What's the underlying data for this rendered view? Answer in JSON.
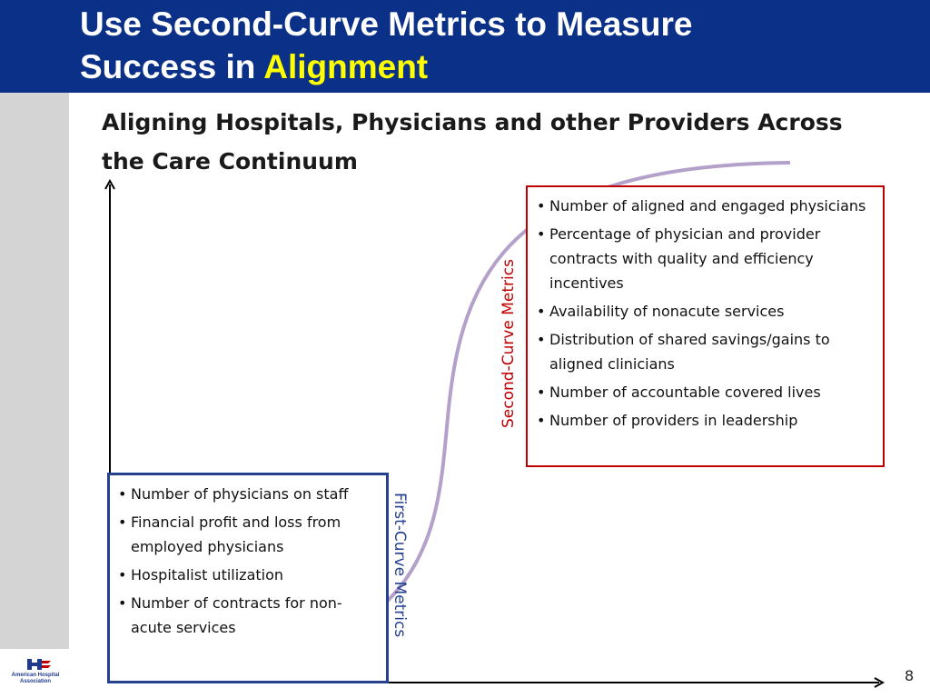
{
  "slide": {
    "title_line1": "Use Second-Curve Metrics to Measure",
    "title_line2_prefix": "Success in ",
    "title_accent": "Alignment",
    "subtitle": "Aligning Hospitals, Physicians and other Providers Across the Care Continuum",
    "page_number": "8",
    "colors": {
      "header_bg": "#0a3187",
      "title_accent": "#ffff00",
      "first_curve": "#24408e",
      "second_curve": "#c00000",
      "s_curve": "#b3a1c9"
    }
  },
  "first_curve": {
    "label": "First-Curve Metrics",
    "items": [
      "Number of physicians on staff",
      "Financial profit and loss from employed physicians",
      "Hospitalist utilization",
      "Number of contracts for non-acute services"
    ]
  },
  "second_curve": {
    "label": "Second-Curve Metrics",
    "items": [
      "Number of aligned and engaged physicians",
      "Percentage of physician and provider contracts with quality and efficiency incentives",
      "Availability of nonacute services",
      "Distribution of shared savings/gains to aligned clinicians",
      "Number of accountable covered lives",
      "Number of providers in leadership"
    ]
  },
  "logo": {
    "icon": "american-hospital-association-logo",
    "text": "American Hospital Association"
  }
}
